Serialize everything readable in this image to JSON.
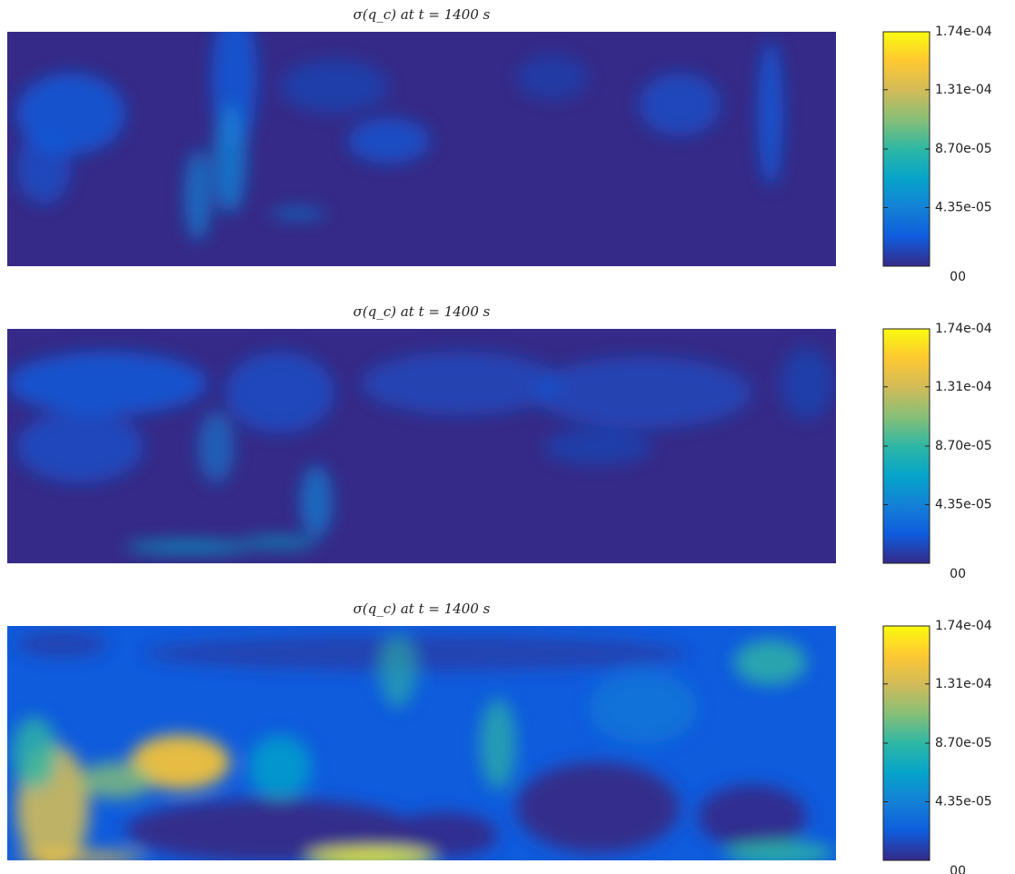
{
  "chart_data": [
    {
      "type": "heatmap",
      "title": "σ(q_c) at t = 1400 s",
      "colormap": [
        "#352a87",
        "#0f5cdd",
        "#1481d6",
        "#06a4ca",
        "#2eb7a4",
        "#87bf77",
        "#d1bb59",
        "#fec832",
        "#f9fb0e"
      ],
      "ylim": [
        0,
        0.000174
      ],
      "yticks": [
        {
          "value": 0,
          "label": "00"
        },
        {
          "value": 4.35e-05,
          "label": "4.35e-05"
        },
        {
          "value": 8.7e-05,
          "label": "8.70e-05"
        },
        {
          "value": 0.000131,
          "label": "1.31e-04"
        },
        {
          "value": 0.000174,
          "label": "1.74e-04"
        }
      ]
    },
    {
      "type": "heatmap",
      "title": "σ(q_c) at t = 1400 s",
      "colormap": [
        "#352a87",
        "#0f5cdd",
        "#1481d6",
        "#06a4ca",
        "#2eb7a4",
        "#87bf77",
        "#d1bb59",
        "#fec832",
        "#f9fb0e"
      ],
      "ylim": [
        0,
        0.000174
      ],
      "yticks": [
        {
          "value": 0,
          "label": "00"
        },
        {
          "value": 4.35e-05,
          "label": "4.35e-05"
        },
        {
          "value": 8.7e-05,
          "label": "8.70e-05"
        },
        {
          "value": 0.000131,
          "label": "1.31e-04"
        },
        {
          "value": 0.000174,
          "label": "1.74e-04"
        }
      ]
    },
    {
      "type": "heatmap",
      "title": "σ(q_c) at t = 1400 s",
      "colormap": [
        "#352a87",
        "#0f5cdd",
        "#1481d6",
        "#06a4ca",
        "#2eb7a4",
        "#87bf77",
        "#d1bb59",
        "#fec832",
        "#f9fb0e"
      ],
      "ylim": [
        0,
        0.000174
      ],
      "yticks": [
        {
          "value": 0,
          "label": "00"
        },
        {
          "value": 4.35e-05,
          "label": "4.35e-05"
        },
        {
          "value": 8.7e-05,
          "label": "8.70e-05"
        },
        {
          "value": 0.000131,
          "label": "1.31e-04"
        },
        {
          "value": 0.000174,
          "label": "1.74e-04"
        }
      ]
    }
  ]
}
